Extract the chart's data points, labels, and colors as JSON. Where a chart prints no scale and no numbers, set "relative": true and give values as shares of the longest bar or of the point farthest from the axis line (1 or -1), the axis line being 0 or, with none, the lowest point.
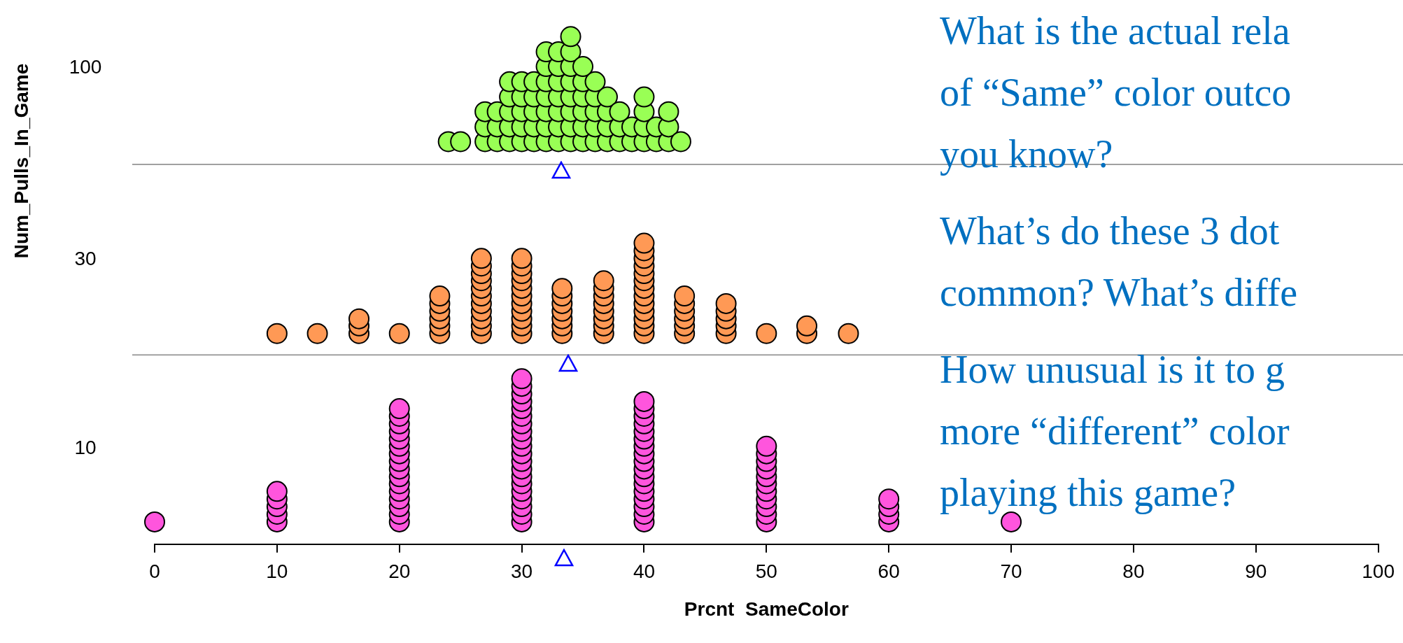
{
  "chart_data": {
    "type": "scatter",
    "xlabel": "Prcnt  SameColor",
    "xlim": [
      0,
      100
    ],
    "xticks": [
      0,
      10,
      20,
      30,
      40,
      50,
      60,
      70,
      80,
      90,
      100
    ],
    "relative": true,
    "marker": "circle",
    "ref_lines": [
      {
        "axis": "y",
        "value": 0.748,
        "color": "#a0a0a0"
      },
      {
        "axis": "y",
        "value": 0.373,
        "color": "#a0a0a0"
      }
    ],
    "annotations": [
      "100",
      "30",
      "10",
      "Num_Pulls_In_Game",
      "What is the actual rela\nof “Same” color outco\nyou know?",
      "What’s do these 3 dot\ncommon? What’s diffe",
      "How unusual is it to g\nmore “different” color\nplaying this game?"
    ],
    "series": [
      {
        "color": "#99ff55",
        "x": [
          24,
          25,
          27,
          27,
          27,
          28,
          28,
          28,
          29,
          29,
          29,
          29,
          29,
          30,
          30,
          30,
          30,
          30,
          31,
          31,
          31,
          31,
          31,
          32,
          32,
          32,
          32,
          32,
          32,
          32,
          33,
          33,
          33,
          33,
          33,
          33,
          33,
          34,
          34,
          34,
          34,
          34,
          34,
          34,
          34,
          35,
          35,
          35,
          35,
          35,
          35,
          36,
          36,
          36,
          36,
          36,
          37,
          37,
          37,
          37,
          38,
          38,
          38,
          39,
          39,
          40,
          40,
          40,
          40,
          41,
          41,
          42,
          42,
          42,
          43
        ],
        "values": [
          0.793,
          0.793,
          0.793,
          0.822,
          0.852,
          0.793,
          0.822,
          0.852,
          0.793,
          0.822,
          0.852,
          0.881,
          0.911,
          0.793,
          0.822,
          0.852,
          0.881,
          0.911,
          0.793,
          0.822,
          0.852,
          0.881,
          0.911,
          0.793,
          0.822,
          0.852,
          0.881,
          0.911,
          0.941,
          0.97,
          0.793,
          0.822,
          0.852,
          0.881,
          0.911,
          0.941,
          0.97,
          0.793,
          0.822,
          0.852,
          0.881,
          0.911,
          0.941,
          0.97,
          1,
          0.793,
          0.822,
          0.852,
          0.881,
          0.911,
          0.941,
          0.793,
          0.822,
          0.852,
          0.881,
          0.911,
          0.793,
          0.822,
          0.852,
          0.881,
          0.793,
          0.822,
          0.852,
          0.793,
          0.822,
          0.793,
          0.822,
          0.852,
          0.881,
          0.793,
          0.822,
          0.793,
          0.822,
          0.852,
          0.793
        ]
      },
      {
        "color": "#ff9955",
        "x": [
          10,
          13.3,
          16.7,
          16.7,
          16.7,
          20,
          23.3,
          23.3,
          23.3,
          23.3,
          23.3,
          23.3,
          26.7,
          26.7,
          26.7,
          26.7,
          26.7,
          26.7,
          26.7,
          26.7,
          26.7,
          26.7,
          26.7,
          30,
          30,
          30,
          30,
          30,
          30,
          30,
          30,
          30,
          30,
          30,
          33.3,
          33.3,
          33.3,
          33.3,
          33.3,
          33.3,
          33.3,
          36.7,
          36.7,
          36.7,
          36.7,
          36.7,
          36.7,
          36.7,
          36.7,
          40,
          40,
          40,
          40,
          40,
          40,
          40,
          40,
          40,
          40,
          40,
          40,
          40,
          43.3,
          43.3,
          43.3,
          43.3,
          43.3,
          43.3,
          46.7,
          46.7,
          46.7,
          46.7,
          46.7,
          50,
          53.3,
          53.3,
          56.7
        ],
        "values": [
          0.415,
          0.415,
          0.415,
          0.43,
          0.444,
          0.415,
          0.415,
          0.43,
          0.444,
          0.459,
          0.474,
          0.489,
          0.415,
          0.43,
          0.444,
          0.459,
          0.474,
          0.489,
          0.504,
          0.519,
          0.533,
          0.548,
          0.563,
          0.415,
          0.43,
          0.444,
          0.459,
          0.474,
          0.489,
          0.504,
          0.519,
          0.533,
          0.548,
          0.563,
          0.415,
          0.43,
          0.444,
          0.459,
          0.474,
          0.489,
          0.504,
          0.415,
          0.43,
          0.444,
          0.459,
          0.474,
          0.489,
          0.504,
          0.519,
          0.415,
          0.43,
          0.444,
          0.459,
          0.474,
          0.489,
          0.504,
          0.519,
          0.533,
          0.548,
          0.563,
          0.578,
          0.593,
          0.415,
          0.43,
          0.444,
          0.459,
          0.474,
          0.489,
          0.415,
          0.43,
          0.444,
          0.459,
          0.474,
          0.415,
          0.415,
          0.43,
          0.415
        ]
      },
      {
        "color": "#ff55dd",
        "x": [
          0,
          10,
          10,
          10,
          10,
          10,
          20,
          20,
          20,
          20,
          20,
          20,
          20,
          20,
          20,
          20,
          20,
          20,
          20,
          20,
          20,
          20,
          30,
          30,
          30,
          30,
          30,
          30,
          30,
          30,
          30,
          30,
          30,
          30,
          30,
          30,
          30,
          30,
          30,
          30,
          30,
          30,
          40,
          40,
          40,
          40,
          40,
          40,
          40,
          40,
          40,
          40,
          40,
          40,
          40,
          40,
          40,
          40,
          40,
          50,
          50,
          50,
          50,
          50,
          50,
          50,
          50,
          50,
          50,
          50,
          60,
          60,
          60,
          60,
          70
        ],
        "values": [
          0.044,
          0.044,
          0.059,
          0.074,
          0.089,
          0.104,
          0.044,
          0.059,
          0.074,
          0.089,
          0.104,
          0.119,
          0.133,
          0.148,
          0.163,
          0.178,
          0.193,
          0.207,
          0.222,
          0.237,
          0.252,
          0.267,
          0.044,
          0.059,
          0.074,
          0.089,
          0.104,
          0.119,
          0.133,
          0.148,
          0.163,
          0.178,
          0.193,
          0.207,
          0.222,
          0.237,
          0.252,
          0.267,
          0.281,
          0.296,
          0.311,
          0.326,
          0.044,
          0.059,
          0.074,
          0.089,
          0.104,
          0.119,
          0.133,
          0.148,
          0.163,
          0.178,
          0.193,
          0.207,
          0.222,
          0.237,
          0.252,
          0.267,
          0.281,
          0.044,
          0.059,
          0.074,
          0.089,
          0.104,
          0.119,
          0.133,
          0.148,
          0.163,
          0.178,
          0.193,
          0.044,
          0.059,
          0.074,
          0.089,
          0.044
        ]
      }
    ]
  }
}
